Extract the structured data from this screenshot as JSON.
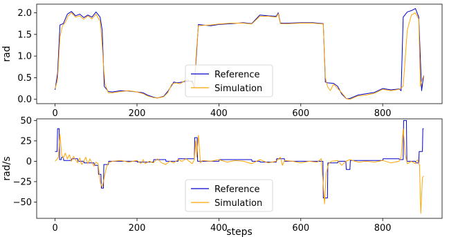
{
  "colors": {
    "reference": "#0000cc",
    "simulation": "#ffa500",
    "axes": "#000000",
    "background": "#ffffff"
  },
  "chart_data": [
    {
      "type": "line",
      "title": "",
      "xlabel": "",
      "ylabel": "rad",
      "xlim": [
        -45,
        945
      ],
      "ylim": [
        -0.1,
        2.2
      ],
      "xticks": [
        0,
        200,
        400,
        600,
        800
      ],
      "xtick_labels": [
        "0",
        "200",
        "400",
        "600",
        "800"
      ],
      "yticks": [
        0.0,
        0.5,
        1.0,
        1.5,
        2.0
      ],
      "ytick_labels": [
        "0.0",
        "0.5",
        "1.0",
        "1.5",
        "2.0"
      ],
      "grid": false,
      "legend": {
        "placement": "lower-center",
        "entries": [
          "Reference",
          "Simulation"
        ]
      },
      "series": [
        {
          "name": "Reference",
          "color": "#0000cc",
          "x": [
            0,
            6,
            12,
            20,
            30,
            40,
            50,
            60,
            70,
            80,
            90,
            100,
            110,
            115,
            120,
            130,
            140,
            160,
            180,
            200,
            215,
            225,
            240,
            250,
            265,
            275,
            290,
            300,
            310,
            320,
            335,
            340,
            345,
            350,
            360,
            380,
            400,
            430,
            460,
            480,
            500,
            520,
            540,
            545,
            550,
            570,
            600,
            630,
            655,
            660,
            665,
            680,
            690,
            700,
            712,
            720,
            740,
            760,
            780,
            800,
            820,
            840,
            845,
            850,
            860,
            870,
            880,
            888,
            895,
            900
          ],
          "y": [
            0.22,
            0.6,
            1.72,
            1.75,
            1.97,
            2.03,
            1.93,
            1.97,
            1.89,
            1.95,
            1.9,
            2.02,
            1.9,
            1.6,
            0.3,
            0.18,
            0.17,
            0.2,
            0.19,
            0.17,
            0.15,
            0.1,
            0.05,
            0.03,
            0.07,
            0.18,
            0.4,
            0.38,
            0.4,
            0.42,
            0.42,
            0.27,
            1.0,
            1.73,
            1.72,
            1.7,
            1.73,
            1.75,
            1.77,
            1.75,
            1.95,
            1.93,
            1.92,
            2.0,
            1.76,
            1.76,
            1.77,
            1.77,
            1.75,
            0.4,
            0.38,
            0.37,
            0.3,
            0.12,
            0.01,
            0.02,
            0.1,
            0.13,
            0.16,
            0.25,
            0.22,
            0.24,
            0.2,
            1.9,
            2.02,
            2.05,
            2.1,
            1.9,
            0.2,
            0.55
          ]
        },
        {
          "name": "Simulation",
          "color": "#ffa500",
          "x": [
            0,
            6,
            12,
            18,
            25,
            32,
            40,
            50,
            60,
            70,
            80,
            90,
            100,
            110,
            115,
            118,
            122,
            130,
            140,
            160,
            180,
            200,
            215,
            225,
            240,
            250,
            265,
            275,
            285,
            295,
            305,
            315,
            325,
            335,
            340,
            345,
            350,
            360,
            380,
            400,
            430,
            460,
            480,
            500,
            520,
            540,
            545,
            550,
            570,
            600,
            630,
            655,
            660,
            665,
            672,
            680,
            690,
            700,
            712,
            720,
            740,
            760,
            780,
            800,
            820,
            840,
            850,
            860,
            870,
            880,
            888,
            892,
            896,
            900
          ],
          "y": [
            0.25,
            0.45,
            1.45,
            1.7,
            1.78,
            1.93,
            2.0,
            1.9,
            1.93,
            1.85,
            1.93,
            1.86,
            1.97,
            1.8,
            1.25,
            0.8,
            0.35,
            0.15,
            0.15,
            0.18,
            0.2,
            0.17,
            0.13,
            0.08,
            0.04,
            0.03,
            0.06,
            0.15,
            0.35,
            0.38,
            0.36,
            0.42,
            0.45,
            0.38,
            0.3,
            1.1,
            1.7,
            1.71,
            1.72,
            1.74,
            1.76,
            1.76,
            1.74,
            1.92,
            1.92,
            1.9,
            1.98,
            1.75,
            1.75,
            1.76,
            1.76,
            1.74,
            0.5,
            0.3,
            0.2,
            0.35,
            0.25,
            0.15,
            0.01,
            0.0,
            0.08,
            0.1,
            0.14,
            0.23,
            0.2,
            0.23,
            0.3,
            1.6,
            1.95,
            2.0,
            1.85,
            0.3,
            0.45,
            0.55
          ]
        }
      ]
    },
    {
      "type": "line",
      "title": "",
      "xlabel": "steps",
      "ylabel": "rad/s",
      "xlim": [
        -45,
        945
      ],
      "ylim": [
        -70,
        52
      ],
      "xticks": [
        0,
        200,
        400,
        600,
        800
      ],
      "xtick_labels": [
        "0",
        "200",
        "400",
        "600",
        "800"
      ],
      "yticks": [
        -50,
        -25,
        0,
        25,
        50
      ],
      "ytick_labels": [
        "−50",
        "−25",
        "0",
        "25",
        "50"
      ],
      "grid": false,
      "legend": {
        "placement": "lower-center",
        "entries": [
          "Reference",
          "Simulation"
        ]
      },
      "series": [
        {
          "name": "Reference",
          "color": "#0000cc",
          "x": [
            0,
            5,
            6,
            10,
            11,
            15,
            16,
            20,
            21,
            40,
            41,
            55,
            56,
            70,
            71,
            95,
            96,
            105,
            106,
            112,
            113,
            118,
            119,
            130,
            131,
            200,
            201,
            240,
            241,
            270,
            271,
            300,
            301,
            340,
            341,
            347,
            348,
            355,
            356,
            400,
            401,
            480,
            481,
            500,
            501,
            540,
            541,
            560,
            561,
            654,
            655,
            665,
            666,
            690,
            691,
            710,
            711,
            720,
            721,
            800,
            801,
            840,
            841,
            850,
            851,
            858,
            859,
            880,
            881,
            888,
            889,
            897,
            898,
            900
          ],
          "y": [
            12,
            12,
            40,
            40,
            2,
            2,
            5,
            5,
            1,
            1,
            3,
            3,
            0,
            0,
            -2,
            -2,
            -5,
            -5,
            -16,
            -16,
            -33,
            -33,
            -4,
            -4,
            0,
            0,
            -1,
            -1,
            2,
            2,
            0,
            0,
            3,
            3,
            29,
            29,
            0,
            0,
            0,
            0,
            2,
            2,
            0,
            0,
            -1,
            -1,
            3,
            3,
            0,
            0,
            -45,
            -45,
            -2,
            -2,
            0,
            0,
            -10,
            -10,
            1,
            1,
            3,
            3,
            2,
            2,
            50,
            50,
            0,
            0,
            -2,
            -2,
            12,
            12,
            40,
            40
          ]
        },
        {
          "name": "Simulation",
          "color": "#ffa500",
          "x": [
            0,
            4,
            8,
            12,
            16,
            20,
            25,
            30,
            35,
            40,
            45,
            50,
            55,
            60,
            65,
            70,
            75,
            80,
            85,
            90,
            95,
            100,
            105,
            110,
            115,
            120,
            125,
            130,
            140,
            160,
            180,
            200,
            210,
            215,
            220,
            230,
            240,
            250,
            260,
            270,
            280,
            290,
            300,
            310,
            320,
            330,
            335,
            340,
            343,
            346,
            350,
            355,
            360,
            380,
            400,
            420,
            440,
            460,
            480,
            500,
            520,
            540,
            550,
            555,
            560,
            580,
            600,
            620,
            640,
            650,
            655,
            658,
            662,
            668,
            675,
            690,
            700,
            710,
            720,
            740,
            760,
            780,
            800,
            820,
            840,
            845,
            850,
            855,
            860,
            870,
            880,
            885,
            890,
            893,
            897,
            900
          ],
          "y": [
            0,
            2,
            5,
            33,
            8,
            4,
            10,
            3,
            8,
            0,
            6,
            2,
            -2,
            4,
            -4,
            0,
            5,
            -3,
            3,
            -2,
            -6,
            -1,
            -3,
            -25,
            -32,
            -20,
            -8,
            -2,
            0,
            1,
            -1,
            1,
            -3,
            2,
            -3,
            0,
            -2,
            3,
            -2,
            -4,
            0,
            -2,
            2,
            0,
            3,
            -1,
            -3,
            2,
            25,
            5,
            32,
            -2,
            1,
            0,
            2,
            -1,
            1,
            0,
            -3,
            2,
            -2,
            0,
            5,
            -5,
            1,
            0,
            -2,
            0,
            -1,
            3,
            -30,
            -52,
            -15,
            -3,
            0,
            1,
            -5,
            0,
            2,
            -1,
            0,
            -1,
            1,
            -2,
            0,
            5,
            40,
            8,
            -3,
            0,
            -3,
            2,
            -5,
            -64,
            -20,
            -18
          ]
        }
      ]
    }
  ]
}
